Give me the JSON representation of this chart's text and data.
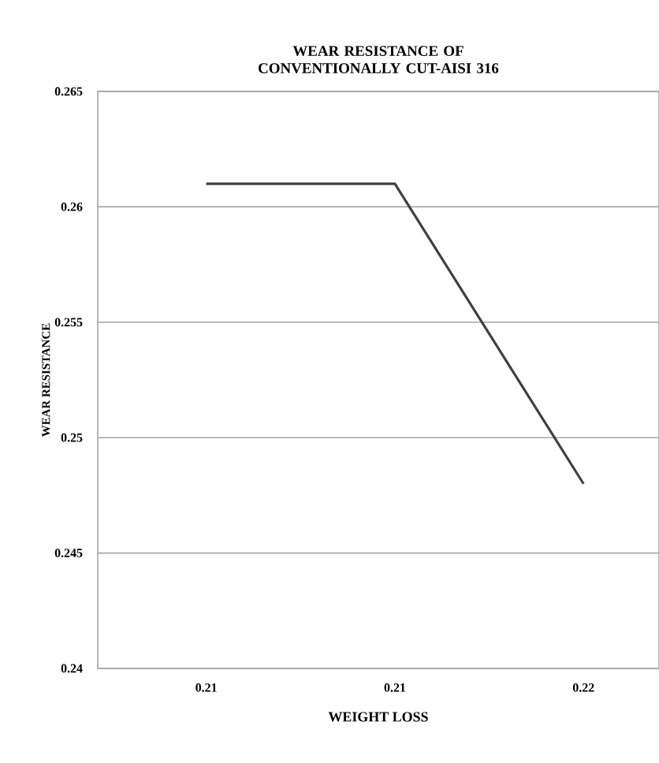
{
  "chart_data": {
    "type": "line",
    "title": "WEAR RESISTANCE OF CONVENTIONALLY CUT-AISI 316",
    "xlabel": "WEIGHT LOSS",
    "ylabel": "WEAR RESISTANCE",
    "categories": [
      "0.21",
      "0.21",
      "0.22"
    ],
    "values": [
      0.261,
      0.261,
      0.248
    ],
    "color": "#404040",
    "ylim": [
      0.24,
      0.265
    ],
    "yticks": [
      0.24,
      0.245,
      0.25,
      0.255,
      0.26,
      0.265
    ],
    "grid": "y",
    "line_style": "solid",
    "marker": "none"
  }
}
